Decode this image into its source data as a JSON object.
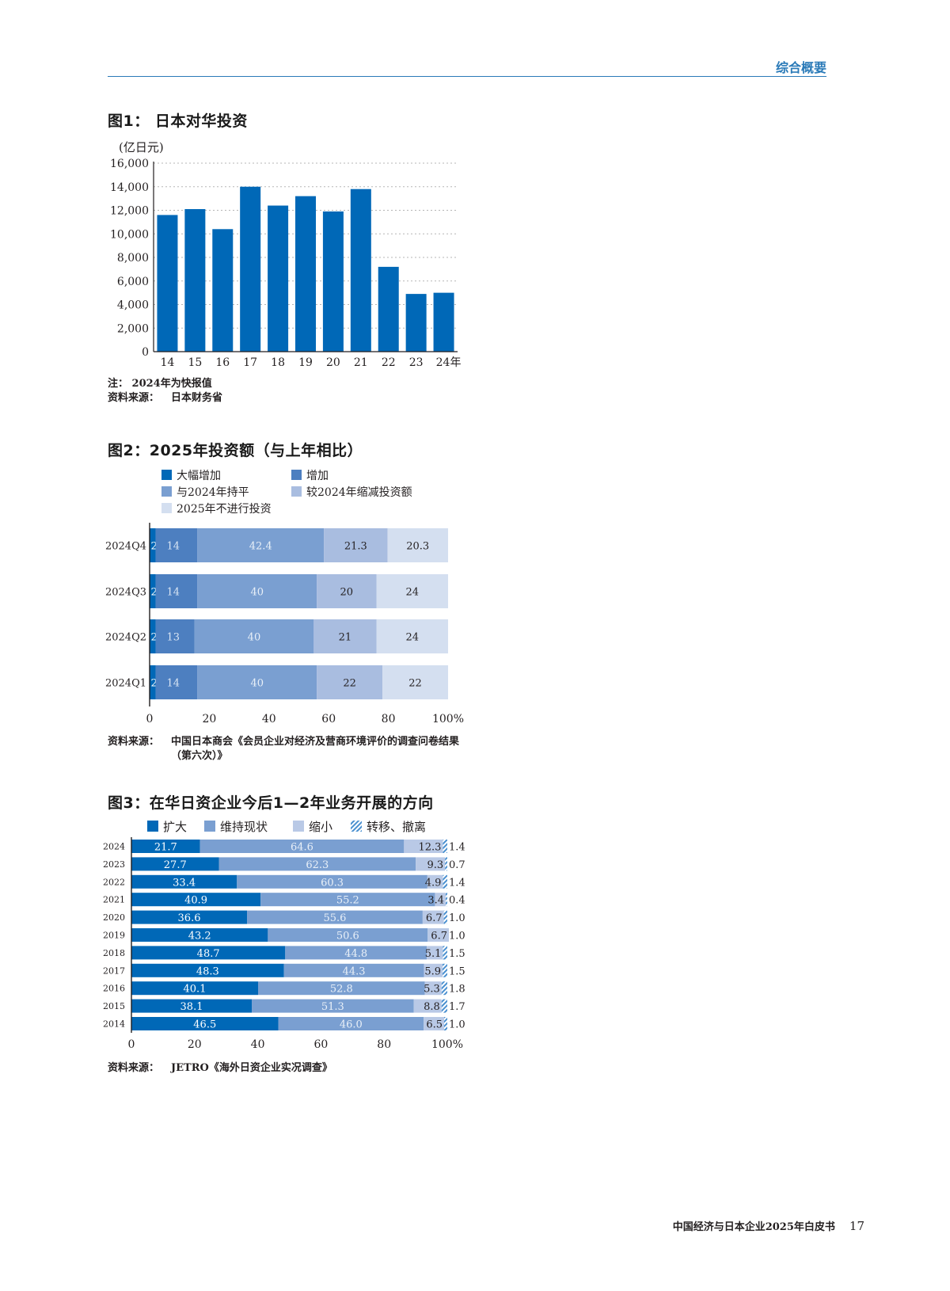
{
  "header": {
    "section_title": "综合概要"
  },
  "footer": {
    "book_title": "中国经济与日本企业2025年白皮书",
    "page_number": "17"
  },
  "colors": {
    "accent": "#2a7ab8",
    "blue_dark": "#0068b7",
    "blue_mid": "#5a88c5",
    "blue_light": "#a9bde0",
    "blue_pale": "#d4dff0"
  },
  "fig1": {
    "title": "图1：  日本对华投资",
    "unit": "(亿日元)",
    "note": "注：  2024年为快报值",
    "source_label": "资料来源：",
    "source_text": "日本财务省"
  },
  "fig2": {
    "title": "图2：2025年投资额（与上年相比）",
    "source_label": "资料来源：",
    "source_text": "中国日本商会《会员企业对经济及营商环境评价的调查问卷结果（第六次）》"
  },
  "fig3": {
    "title": "图3：在华日资企业今后1—2年业务开展的方向",
    "source_label": "资料来源：",
    "source_text": "JETRO《海外日资企业实况调查》"
  },
  "chart_data": [
    {
      "type": "bar",
      "title": "图1：  日本对华投资",
      "ylabel": "(亿日元)",
      "categories": [
        "14",
        "15",
        "16",
        "17",
        "18",
        "19",
        "20",
        "21",
        "22",
        "23",
        "24年"
      ],
      "values": [
        11600,
        12100,
        10400,
        14000,
        12400,
        13200,
        11900,
        13800,
        7200,
        4900,
        5000
      ],
      "ylim": [
        0,
        16000
      ],
      "yticks": [
        "0",
        "2,000",
        "4,000",
        "6,000",
        "8,000",
        "10,000",
        "12,000",
        "14,000",
        "16,000"
      ],
      "ytick_values": [
        0,
        2000,
        4000,
        6000,
        8000,
        10000,
        12000,
        14000,
        16000
      ],
      "grid": true,
      "color": "#0068b7"
    },
    {
      "type": "bar",
      "orientation": "horizontal",
      "stacked": true,
      "title": "图2：2025年投资额（与上年相比）",
      "categories": [
        "2024Q4",
        "2024Q3",
        "2024Q2",
        "2024Q1"
      ],
      "legend": [
        {
          "name": "大幅增加",
          "color": "#0068b7"
        },
        {
          "name": "增加",
          "color": "#4d7fc0"
        },
        {
          "name": "与2024年持平",
          "color": "#7a9fd1"
        },
        {
          "name": "较2024年缩减投资额",
          "color": "#a9bde0"
        },
        {
          "name": "2025年不进行投资",
          "color": "#d4dff0"
        }
      ],
      "legend_placement": "top-left",
      "series": [
        {
          "name": "大幅增加",
          "values": [
            2,
            2,
            2,
            2
          ],
          "labels": [
            "2",
            "2",
            "2",
            "2"
          ]
        },
        {
          "name": "增加",
          "values": [
            14,
            14,
            13,
            14
          ],
          "labels": [
            "14",
            "14",
            "13",
            "14"
          ]
        },
        {
          "name": "与2024年持平",
          "values": [
            42.4,
            40,
            40,
            40
          ],
          "labels": [
            "42.4",
            "40",
            "40",
            "40"
          ]
        },
        {
          "name": "较2024年缩减投资额",
          "values": [
            21.3,
            20,
            21,
            22
          ],
          "labels": [
            "21.3",
            "20",
            "21",
            "22"
          ]
        },
        {
          "name": "2025年不进行投资",
          "values": [
            20.3,
            24,
            24,
            22
          ],
          "labels": [
            "20.3",
            "24",
            "24",
            "22"
          ]
        }
      ],
      "xlim": [
        0,
        100
      ],
      "xticks": [
        "0",
        "20",
        "40",
        "60",
        "80",
        "100%"
      ],
      "xtick_values": [
        0,
        20,
        40,
        60,
        80,
        100
      ]
    },
    {
      "type": "bar",
      "orientation": "horizontal",
      "stacked": true,
      "title": "图3：在华日资企业今后1—2年业务开展的方向",
      "categories": [
        "2024",
        "2023",
        "2022",
        "2021",
        "2020",
        "2019",
        "2018",
        "2017",
        "2016",
        "2015",
        "2014"
      ],
      "legend": [
        {
          "name": "扩大",
          "color": "#0068b7"
        },
        {
          "name": "维持现状",
          "color": "#7a9fd1"
        },
        {
          "name": "缩小",
          "color": "#b9c9e6"
        },
        {
          "name": "转移、撤离",
          "color": "#4a90d0",
          "hatched": true
        }
      ],
      "legend_placement": "top",
      "series": [
        {
          "name": "扩大",
          "values": [
            21.7,
            27.7,
            33.4,
            40.9,
            36.6,
            43.2,
            48.7,
            48.3,
            40.1,
            38.1,
            46.5
          ],
          "labels": [
            "21.7",
            "27.7",
            "33.4",
            "40.9",
            "36.6",
            "43.2",
            "48.7",
            "48.3",
            "40.1",
            "38.1",
            "46.5"
          ]
        },
        {
          "name": "维持现状",
          "values": [
            64.6,
            62.3,
            60.3,
            55.2,
            55.6,
            50.6,
            44.8,
            44.3,
            52.8,
            51.3,
            46.0
          ],
          "labels": [
            "64.6",
            "62.3",
            "60.3",
            "55.2",
            "55.6",
            "50.6",
            "44.8",
            "44.3",
            "52.8",
            "51.3",
            "46.0"
          ]
        },
        {
          "name": "缩小",
          "values": [
            12.3,
            9.3,
            4.9,
            3.4,
            6.7,
            6.7,
            5.1,
            5.9,
            5.3,
            8.8,
            6.5
          ],
          "labels": [
            "12.3",
            "9.3",
            "4.9",
            "3.4",
            "6.7",
            "6.7",
            "5.1",
            "5.9",
            "5.3",
            "8.8",
            "6.5"
          ]
        },
        {
          "name": "转移、撤离",
          "values": [
            1.4,
            0.7,
            1.4,
            0.4,
            1.0,
            1.0,
            1.5,
            1.5,
            1.8,
            1.7,
            1.0
          ],
          "labels": [
            "1.4",
            "0.7",
            "1.4",
            "0.4",
            "1.0",
            "1.0",
            "1.5",
            "1.5",
            "1.8",
            "1.7",
            "1.0"
          ]
        }
      ],
      "xlim": [
        0,
        100
      ],
      "xticks": [
        "0",
        "20",
        "40",
        "60",
        "80",
        "100%"
      ],
      "xtick_values": [
        0,
        20,
        40,
        60,
        80,
        100
      ]
    }
  ]
}
